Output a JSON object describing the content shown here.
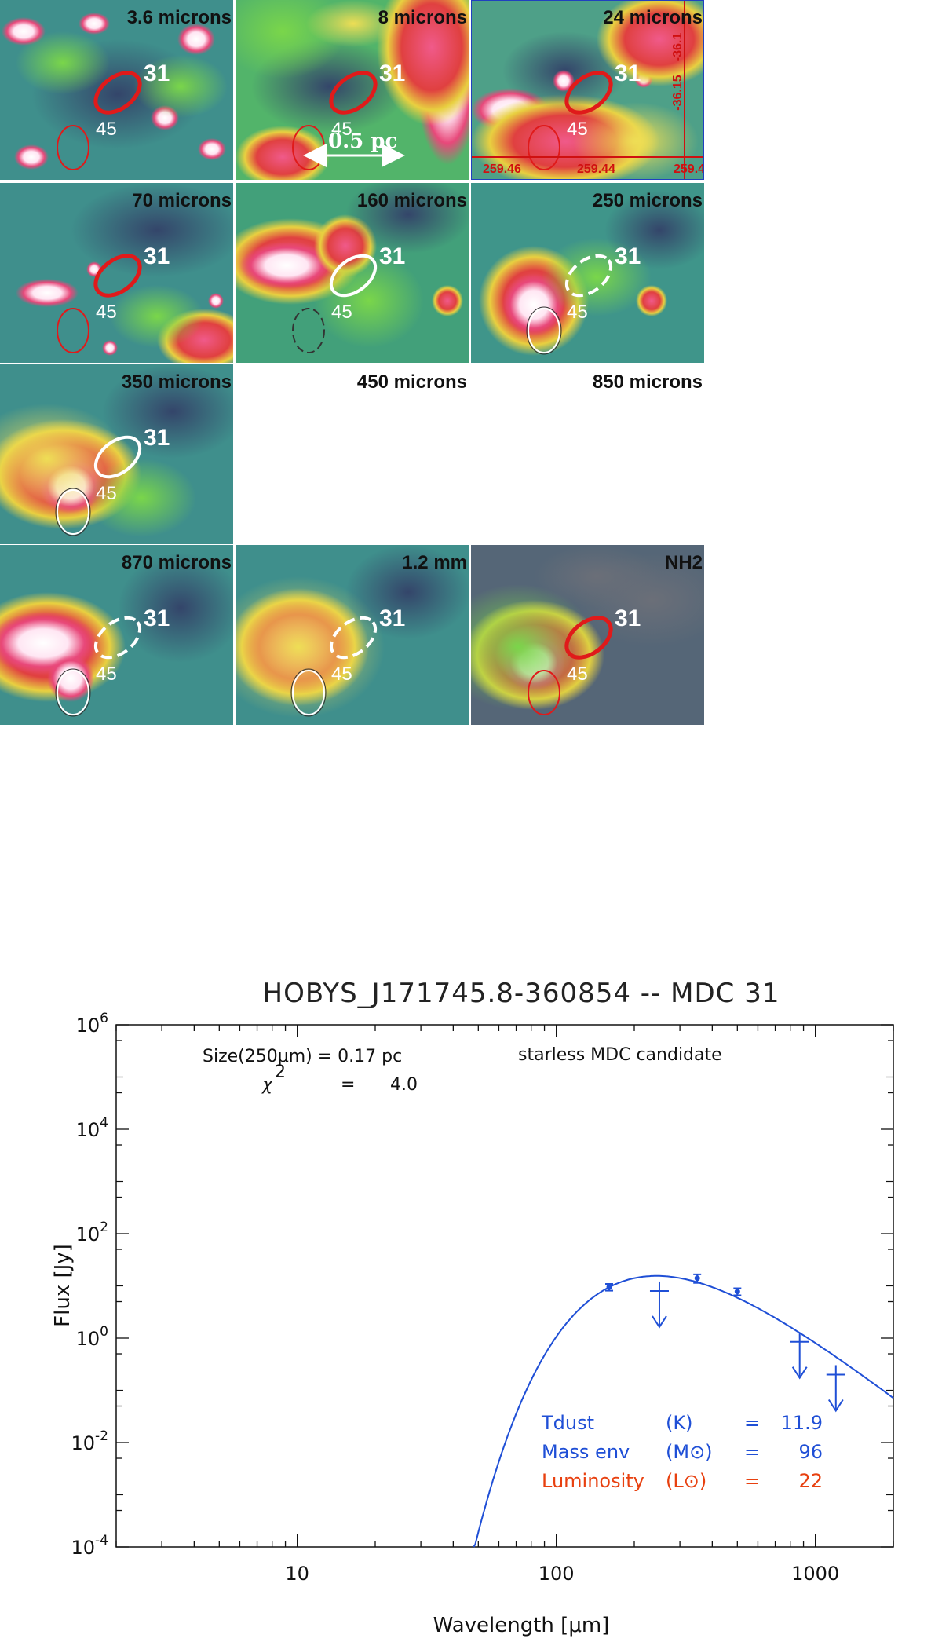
{
  "panels": [
    {
      "title": "3.6 microns",
      "bg": "#3f8f8c",
      "c1": "31",
      "c2": "45",
      "style1": "red-bold",
      "style2": "red-thin"
    },
    {
      "title": "8 microns",
      "bg": "#52b46a",
      "c1": "31",
      "c2": "45",
      "style1": "red-bold",
      "style2": "red-thin",
      "scale_label": "0.5 pc"
    },
    {
      "title": "24 microns",
      "bg": "#4ea088",
      "c1": "31",
      "c2": "45",
      "style1": "red-bold",
      "style2": "red-thin",
      "coords": {
        "ra": [
          "259.46",
          "259.44",
          "259.4"
        ],
        "dec": [
          "-36.1",
          "-36.15"
        ]
      }
    },
    {
      "title": "70 microns",
      "bg": "#3f8f8c",
      "c1": "31",
      "c2": "45",
      "style1": "red-bold",
      "style2": "red-thin"
    },
    {
      "title": "160 microns",
      "bg": "#42a07a",
      "c1": "31",
      "c2": "45",
      "style1": "white-solid",
      "style2": "black-dashed"
    },
    {
      "title": "250 microns",
      "bg": "#3f958a",
      "c1": "31",
      "c2": "45",
      "style1": "white-dashed",
      "style2": "white-thin"
    },
    {
      "title": "350 microns",
      "bg": "#3f8f8c",
      "c1": "31",
      "c2": "45",
      "style1": "white-solid",
      "style2": "white-thin"
    },
    {
      "title": "450 microns",
      "empty": true
    },
    {
      "title": "850 microns",
      "empty": true
    },
    {
      "title": "870 microns",
      "bg": "#3f8f8c",
      "c1": "31",
      "c2": "45",
      "style1": "white-dashed",
      "style2": "white-thin"
    },
    {
      "title": "1.2 mm",
      "bg": "#3f8f8c",
      "c1": "31",
      "c2": "45",
      "style1": "white-dashed",
      "style2": "white-thin"
    },
    {
      "title": "NH2",
      "bg": "#556677",
      "c1": "31",
      "c2": "45",
      "style1": "red-bold",
      "style2": "red-thin"
    }
  ],
  "chart_data": {
    "type": "scatter",
    "title": "HOBYS_J171745.8-360854    --  MDC 31",
    "xlabel": "Wavelength [μm]",
    "ylabel": "Flux [Jy]",
    "xscale": "log",
    "yscale": "log",
    "xlim": [
      2,
      2000
    ],
    "ylim": [
      0.0001,
      1000000
    ],
    "xticks": [
      {
        "v": 10,
        "label": "10"
      },
      {
        "v": 100,
        "label": "100"
      },
      {
        "v": 1000,
        "label": "1000"
      }
    ],
    "yticks": [
      {
        "e": -4
      },
      {
        "e": -2
      },
      {
        "e": 0
      },
      {
        "e": 2
      },
      {
        "e": 4
      },
      {
        "e": 6
      }
    ],
    "color": "#1f4fd6",
    "detections": [
      {
        "x": 160,
        "y": 9.5,
        "err": 1.4
      },
      {
        "x": 350,
        "y": 14.0,
        "err": 2.6
      },
      {
        "x": 500,
        "y": 7.8,
        "err": 1.2
      }
    ],
    "upper_limits": [
      {
        "x": 250,
        "y": 8.0
      },
      {
        "x": 870,
        "y": 0.85
      },
      {
        "x": 1200,
        "y": 0.2
      }
    ],
    "fit": {
      "tdust": 11.9,
      "beta": 2.0,
      "peak_x": 250,
      "peak_y": 15.5,
      "x_min": 48,
      "x_max": 2000
    },
    "annotations": {
      "size_line": "Size(250μm) = 0.17 pc",
      "chi_label": "χ",
      "chi_exp": "2",
      "chi_eq": "=",
      "chi_val": "4.0",
      "candidate": "starless MDC candidate"
    },
    "params": [
      {
        "name": "Tdust",
        "unit": "(K)",
        "eq": "=",
        "value": "11.9",
        "color": "#1f4fd6"
      },
      {
        "name": "Mass env",
        "unit": "(M⊙)",
        "eq": "=",
        "value": "96",
        "color": "#1f4fd6"
      },
      {
        "name": "Luminosity",
        "unit": "(L⊙)",
        "eq": "=",
        "value": "22",
        "color": "#e8400f"
      }
    ],
    "colors": {
      "candidate": "#5a2a8a"
    }
  }
}
